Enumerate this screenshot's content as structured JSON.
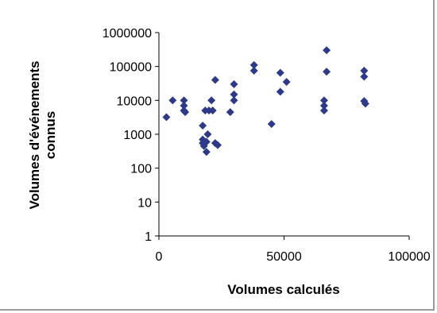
{
  "chart_data": {
    "type": "scatter",
    "title": "",
    "xlabel": "Volumes calculés",
    "ylabel_lines": [
      "Volumes d'événements",
      "connus"
    ],
    "xlim": [
      0,
      100000
    ],
    "ylim": [
      1,
      1000000
    ],
    "y_scale": "log",
    "grid": false,
    "legend": "none",
    "marker": "diamond",
    "marker_color": "#2E3A87",
    "x_ticks": [
      0,
      50000,
      100000
    ],
    "x_tick_labels": [
      "0",
      "50000",
      "100000"
    ],
    "y_ticks": [
      1,
      10,
      100,
      1000,
      10000,
      100000,
      1000000
    ],
    "y_tick_labels": [
      "1",
      "10",
      "100",
      "1000",
      "10000",
      "100000",
      "1000000"
    ],
    "points": [
      {
        "x": 3000,
        "y": 3200
      },
      {
        "x": 5500,
        "y": 10000
      },
      {
        "x": 10000,
        "y": 10000
      },
      {
        "x": 10000,
        "y": 7000
      },
      {
        "x": 10000,
        "y": 5000
      },
      {
        "x": 10500,
        "y": 4500
      },
      {
        "x": 17500,
        "y": 1800
      },
      {
        "x": 17500,
        "y": 700
      },
      {
        "x": 17500,
        "y": 550
      },
      {
        "x": 18000,
        "y": 450
      },
      {
        "x": 18500,
        "y": 5000
      },
      {
        "x": 19000,
        "y": 600
      },
      {
        "x": 19000,
        "y": 300
      },
      {
        "x": 19500,
        "y": 1000
      },
      {
        "x": 20000,
        "y": 5000
      },
      {
        "x": 21000,
        "y": 10000
      },
      {
        "x": 21500,
        "y": 5000
      },
      {
        "x": 22500,
        "y": 40000
      },
      {
        "x": 22500,
        "y": 550
      },
      {
        "x": 23500,
        "y": 480
      },
      {
        "x": 28500,
        "y": 4500
      },
      {
        "x": 30000,
        "y": 30000
      },
      {
        "x": 30000,
        "y": 15000
      },
      {
        "x": 30000,
        "y": 10000
      },
      {
        "x": 38000,
        "y": 110000
      },
      {
        "x": 38000,
        "y": 75000
      },
      {
        "x": 45000,
        "y": 2000
      },
      {
        "x": 48500,
        "y": 65000
      },
      {
        "x": 48500,
        "y": 18000
      },
      {
        "x": 51000,
        "y": 35000
      },
      {
        "x": 66000,
        "y": 10000
      },
      {
        "x": 66000,
        "y": 7000
      },
      {
        "x": 66000,
        "y": 5000
      },
      {
        "x": 67000,
        "y": 300000
      },
      {
        "x": 67000,
        "y": 70000
      },
      {
        "x": 82000,
        "y": 75000
      },
      {
        "x": 82000,
        "y": 50000
      },
      {
        "x": 82000,
        "y": 9500
      },
      {
        "x": 82500,
        "y": 8000
      }
    ]
  }
}
